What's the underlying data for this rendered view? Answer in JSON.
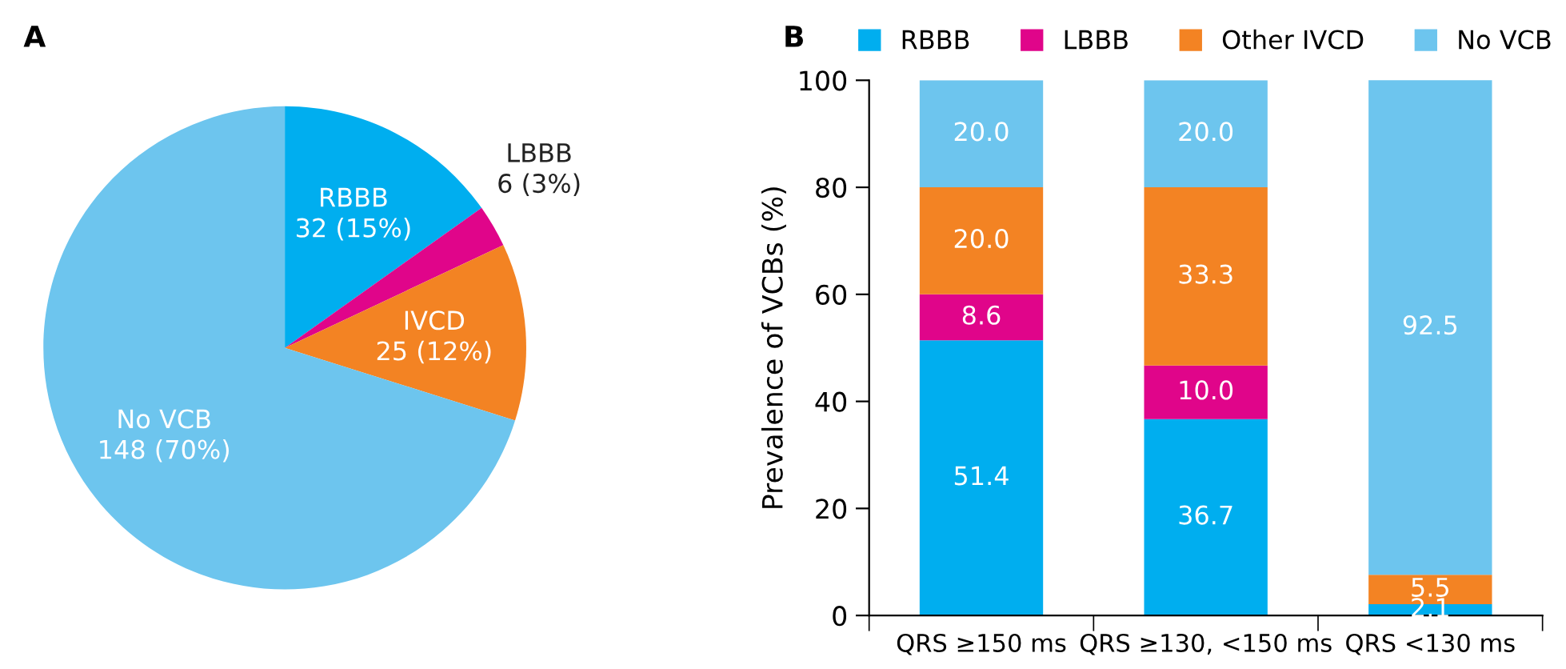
{
  "chart_data": [
    {
      "type": "pie",
      "title": "A",
      "categories": [
        "RBBB",
        "LBBB",
        "IVCD",
        "No VCB"
      ],
      "values": [
        32,
        6,
        25,
        148
      ],
      "value_labels": [
        "32 (15%)",
        "6 (3%)",
        "25 (12%)",
        "148 (70%)"
      ],
      "colors": [
        "#00aeef",
        "#e0058a",
        "#f38323",
        "#6dc5ee"
      ],
      "legend": false
    },
    {
      "type": "bar",
      "title": "B",
      "stacked": true,
      "ylabel": "Prevalence of VCBs (%)",
      "categories": [
        "QRS ≥150 ms",
        "QRS ≥130, <150 ms",
        "QRS <130 ms"
      ],
      "series": [
        {
          "name": "RBBB",
          "color": "#00aeef",
          "values": [
            51.4,
            36.7,
            2.1
          ],
          "value_labels": [
            "51.4",
            "36.7",
            "2.1"
          ]
        },
        {
          "name": "LBBB",
          "color": "#e0058a",
          "values": [
            8.6,
            10.0,
            null
          ],
          "value_labels": [
            "8.6",
            "10.0",
            null
          ]
        },
        {
          "name": "Other IVCD",
          "color": "#f38323",
          "values": [
            20.0,
            33.3,
            5.5
          ],
          "value_labels": [
            "20.0",
            "33.3",
            "5.5"
          ]
        },
        {
          "name": "No VCB",
          "color": "#6dc5ee",
          "values": [
            20.0,
            20.0,
            92.5
          ],
          "value_labels": [
            "20.0",
            "20.0",
            "92.5"
          ]
        }
      ],
      "ylim": [
        0,
        100
      ],
      "yticks": [
        0,
        20,
        40,
        60,
        80,
        100
      ],
      "grid": false,
      "legend": "top"
    }
  ]
}
